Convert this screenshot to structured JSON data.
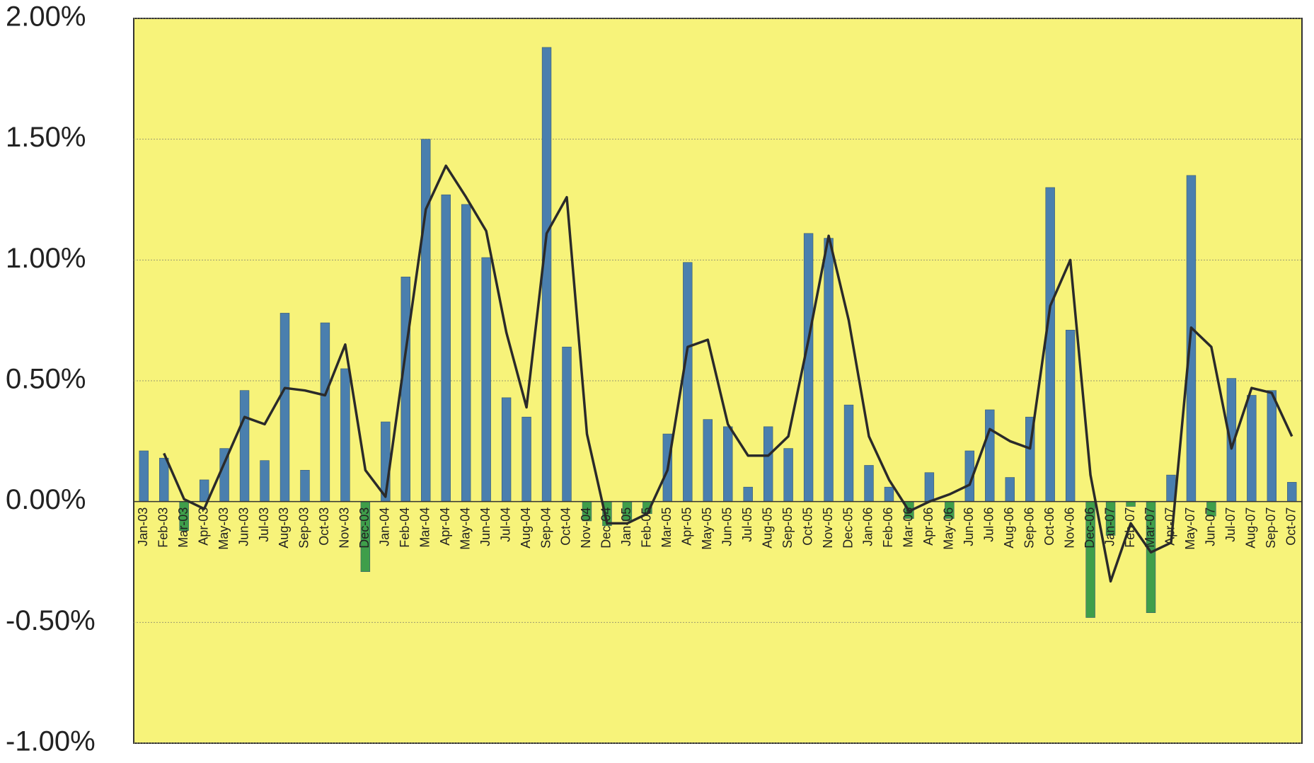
{
  "chart_data": {
    "type": "bar",
    "background": "#f7f37a",
    "grid": true,
    "categories": [
      "Jan-03",
      "Feb-03",
      "Mar-03",
      "Apr-03",
      "May-03",
      "Jun-03",
      "Jul-03",
      "Aug-03",
      "Sep-03",
      "Oct-03",
      "Nov-03",
      "Dec-03",
      "Jan-04",
      "Feb-04",
      "Mar-04",
      "Apr-04",
      "May-04",
      "Jun-04",
      "Jul-04",
      "Aug-04",
      "Sep-04",
      "Oct-04",
      "Nov-04",
      "Dec-04",
      "Jan-05",
      "Feb-05",
      "Mar-05",
      "Apr-05",
      "May-05",
      "Jun-05",
      "Jul-05",
      "Aug-05",
      "Sep-05",
      "Oct-05",
      "Nov-05",
      "Dec-05",
      "Jan-06",
      "Feb-06",
      "Mar-06",
      "Apr-06",
      "May-06",
      "Jun-06",
      "Jul-06",
      "Aug-06",
      "Sep-06",
      "Oct-06",
      "Nov-06",
      "Dec-06",
      "Jan-07",
      "Feb-07",
      "Mar-07",
      "Apr-07",
      "May-07",
      "Jun-07",
      "Jul-07",
      "Aug-07",
      "Sep-07",
      "Oct-07"
    ],
    "series": [
      {
        "type": "bar",
        "color": "#4a7fae",
        "negative_color": "#3f9e4a",
        "values": [
          0.21,
          0.18,
          -0.12,
          0.09,
          0.22,
          0.46,
          0.17,
          0.78,
          0.13,
          0.74,
          0.55,
          -0.29,
          0.33,
          0.93,
          1.5,
          1.27,
          1.23,
          1.01,
          0.43,
          0.35,
          1.88,
          0.64,
          -0.08,
          -0.1,
          -0.08,
          -0.05,
          0.28,
          0.99,
          0.34,
          0.31,
          0.06,
          0.31,
          0.22,
          1.11,
          1.09,
          0.4,
          0.15,
          0.06,
          -0.07,
          0.12,
          -0.07,
          0.21,
          0.38,
          0.1,
          0.35,
          1.3,
          0.71,
          -0.48,
          -0.14,
          -0.02,
          -0.46,
          0.11,
          1.35,
          -0.06,
          0.51,
          0.44,
          0.46,
          0.08
        ]
      },
      {
        "type": "line",
        "color": "#2a2a2a",
        "values": [
          null,
          0.2,
          0.01,
          -0.03,
          0.16,
          0.35,
          0.32,
          0.47,
          0.46,
          0.44,
          0.65,
          0.13,
          0.02,
          0.62,
          1.21,
          1.39,
          1.26,
          1.12,
          0.7,
          0.39,
          1.11,
          1.26,
          0.28,
          -0.09,
          -0.09,
          -0.05,
          0.13,
          0.64,
          0.67,
          0.32,
          0.19,
          0.19,
          0.27,
          0.67,
          1.1,
          0.75,
          0.27,
          0.09,
          -0.04,
          0.0,
          0.03,
          0.07,
          0.3,
          0.25,
          0.22,
          0.81,
          1.0,
          0.11,
          -0.33,
          -0.09,
          -0.21,
          -0.17,
          0.72,
          0.64,
          0.22,
          0.47,
          0.45,
          0.27
        ]
      }
    ],
    "ylim": [
      -1,
      2
    ],
    "yticks": [
      {
        "value": -1,
        "label": "-1.00%"
      },
      {
        "value": -0.5,
        "label": "-0.50%"
      },
      {
        "value": 0,
        "label": "0.00%"
      },
      {
        "value": 0.5,
        "label": "0.50%"
      },
      {
        "value": 1,
        "label": "1.00%"
      },
      {
        "value": 1.5,
        "label": "1.50%"
      },
      {
        "value": 2,
        "label": "2.00%"
      }
    ]
  }
}
